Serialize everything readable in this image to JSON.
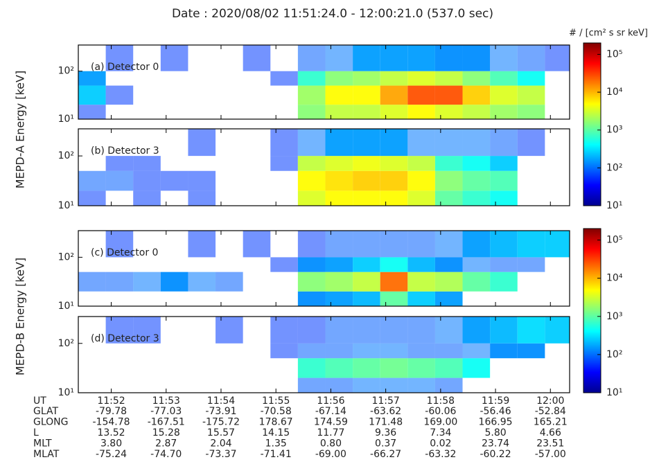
{
  "title": "Date : 2020/08/02 11:51:24.0 - 12:00:21.0 (537.0 sec)",
  "chart_data": [
    {
      "type": "heatmap",
      "label": "(a) Detector 0",
      "ylabel": "MEPD-A Energy [keV]",
      "xlim": [
        711.4,
        720.35
      ],
      "xticks": [
        712,
        713,
        714,
        715,
        716,
        717,
        718,
        719,
        720
      ],
      "ylim": [
        10,
        350
      ],
      "yticks": [
        {
          "value": 10,
          "label": "10¹"
        },
        {
          "value": 100,
          "label": "10²"
        }
      ],
      "log_y": true,
      "xbins": [
        711.4,
        711.9,
        712.4,
        712.9,
        713.4,
        713.9,
        714.4,
        714.9,
        715.4,
        715.9,
        716.4,
        716.9,
        717.4,
        717.9,
        718.4,
        718.9,
        719.4,
        719.9,
        720.35
      ],
      "ybins": [
        10,
        20,
        50,
        100,
        350
      ],
      "zlim": [
        10,
        200000
      ],
      "colorbar": {
        "label": "# / [cm² s sr keV]",
        "ticks": [
          {
            "value": 10,
            "label": "10¹"
          },
          {
            "value": 100,
            "label": "10²"
          },
          {
            "value": 1000,
            "label": "10³"
          },
          {
            "value": 10000,
            "label": "10⁴"
          },
          {
            "value": 100000,
            "label": "10⁵"
          }
        ]
      },
      "values": [
        [
          20,
          null,
          null,
          null,
          null,
          null,
          null,
          null,
          800,
          1500,
          1500,
          2000,
          3000,
          2000,
          1500,
          1000,
          800,
          null
        ],
        [
          100,
          20,
          null,
          null,
          null,
          null,
          null,
          null,
          1000,
          3000,
          3000,
          8000,
          20000,
          20000,
          5000,
          2000,
          1500,
          null
        ],
        [
          60,
          null,
          null,
          null,
          null,
          null,
          null,
          20,
          300,
          800,
          1000,
          1500,
          2000,
          1500,
          800,
          400,
          200,
          null
        ],
        [
          null,
          20,
          null,
          20,
          null,
          null,
          20,
          null,
          30,
          40,
          60,
          60,
          60,
          50,
          50,
          40,
          30,
          20
        ]
      ]
    },
    {
      "type": "heatmap",
      "label": "(b) Detector 3",
      "xlim": [
        711.4,
        720.35
      ],
      "xticks": [
        712,
        713,
        714,
        715,
        716,
        717,
        718,
        719,
        720
      ],
      "ylim": [
        10,
        350
      ],
      "yticks": [
        {
          "value": 10,
          "label": "10¹"
        },
        {
          "value": 100,
          "label": "10²"
        }
      ],
      "log_y": true,
      "xbins": [
        711.4,
        711.9,
        712.4,
        712.9,
        713.4,
        713.9,
        714.4,
        714.9,
        715.4,
        715.9,
        716.4,
        716.9,
        717.4,
        717.9,
        718.4,
        718.9,
        719.4,
        719.9,
        720.35
      ],
      "ybins": [
        10,
        20,
        50,
        100,
        350
      ],
      "zlim": [
        10,
        200000
      ],
      "values": [
        [
          20,
          null,
          20,
          null,
          20,
          null,
          null,
          null,
          2000,
          3000,
          3000,
          3000,
          2000,
          500,
          300,
          200,
          null,
          null
        ],
        [
          30,
          30,
          20,
          20,
          20,
          null,
          null,
          null,
          3000,
          4000,
          5000,
          5000,
          3000,
          800,
          500,
          400,
          null,
          null
        ],
        [
          null,
          20,
          20,
          null,
          null,
          null,
          null,
          20,
          1500,
          2000,
          2500,
          2000,
          1500,
          300,
          200,
          100,
          null,
          null
        ],
        [
          null,
          null,
          null,
          null,
          20,
          null,
          null,
          20,
          40,
          60,
          60,
          60,
          40,
          40,
          40,
          30,
          20,
          null
        ]
      ]
    },
    {
      "type": "heatmap",
      "label": "(c) Detector 0",
      "ylabel": "MEPD-B Energy [keV]",
      "xlim": [
        711.4,
        720.35
      ],
      "xticks": [
        712,
        713,
        714,
        715,
        716,
        717,
        718,
        719,
        720
      ],
      "ylim": [
        10,
        350
      ],
      "yticks": [
        {
          "value": 10,
          "label": "10¹"
        },
        {
          "value": 100,
          "label": "10²"
        }
      ],
      "log_y": true,
      "xbins": [
        711.4,
        711.9,
        712.4,
        712.9,
        713.4,
        713.9,
        714.4,
        714.9,
        715.4,
        715.9,
        716.4,
        716.9,
        717.4,
        717.9,
        718.4,
        718.9,
        719.4,
        719.9,
        720.35
      ],
      "ybins": [
        10,
        20,
        50,
        100,
        350
      ],
      "zlim": [
        10,
        200000
      ],
      "colorbar": {
        "ticks": [
          {
            "value": 10,
            "label": "10¹"
          },
          {
            "value": 100,
            "label": "10²"
          },
          {
            "value": 1000,
            "label": "10³"
          },
          {
            "value": 10000,
            "label": "10⁴"
          },
          {
            "value": 100000,
            "label": "10⁵"
          }
        ]
      },
      "values": [
        [
          null,
          null,
          null,
          null,
          null,
          null,
          null,
          null,
          50,
          60,
          80,
          500,
          100,
          60,
          null,
          null,
          null,
          null
        ],
        [
          30,
          30,
          40,
          50,
          40,
          30,
          null,
          null,
          800,
          1000,
          1500,
          15000,
          1500,
          1200,
          500,
          300,
          null,
          null
        ],
        [
          null,
          null,
          null,
          null,
          null,
          null,
          null,
          20,
          50,
          60,
          100,
          200,
          80,
          50,
          40,
          30,
          30,
          null
        ],
        [
          null,
          20,
          null,
          null,
          20,
          null,
          20,
          null,
          20,
          30,
          30,
          30,
          30,
          40,
          60,
          80,
          100,
          100
        ]
      ]
    },
    {
      "type": "heatmap",
      "label": "(d) Detector 3",
      "xlim": [
        711.4,
        720.35
      ],
      "xticks": [
        {
          "value": 712,
          "label": "11:52"
        },
        {
          "value": 713,
          "label": "11:53"
        },
        {
          "value": 714,
          "label": "11:54"
        },
        {
          "value": 715,
          "label": "11:55"
        },
        {
          "value": 716,
          "label": "11:56"
        },
        {
          "value": 717,
          "label": "11:57"
        },
        {
          "value": 718,
          "label": "11:58"
        },
        {
          "value": 719,
          "label": "11:59"
        },
        {
          "value": 720,
          "label": "12:00"
        }
      ],
      "xlabel": "UT",
      "ylim": [
        10,
        350
      ],
      "yticks": [
        {
          "value": 10,
          "label": "10¹"
        },
        {
          "value": 100,
          "label": "10²"
        }
      ],
      "log_y": true,
      "xbins": [
        711.4,
        711.9,
        712.4,
        712.9,
        713.4,
        713.9,
        714.4,
        714.9,
        715.4,
        715.9,
        716.4,
        716.9,
        717.4,
        717.9,
        718.4,
        718.9,
        719.4,
        719.9,
        720.35
      ],
      "ybins": [
        10,
        20,
        50,
        100,
        350
      ],
      "zlim": [
        10,
        200000
      ],
      "values": [
        [
          null,
          null,
          null,
          null,
          null,
          null,
          null,
          null,
          30,
          30,
          40,
          40,
          40,
          30,
          null,
          null,
          null,
          null
        ],
        [
          null,
          null,
          null,
          null,
          null,
          null,
          null,
          null,
          300,
          400,
          500,
          600,
          500,
          400,
          200,
          null,
          null,
          null
        ],
        [
          null,
          null,
          null,
          null,
          null,
          null,
          null,
          20,
          30,
          30,
          40,
          40,
          30,
          30,
          40,
          50,
          50,
          null
        ],
        [
          null,
          20,
          20,
          null,
          null,
          20,
          null,
          20,
          20,
          30,
          30,
          30,
          30,
          40,
          60,
          80,
          120,
          100
        ]
      ]
    }
  ],
  "ephemeris": [
    {
      "name": "GLAT",
      "values": [
        "-79.78",
        "-77.03",
        "-73.91",
        "-70.58",
        "-67.14",
        "-63.62",
        "-60.06",
        "-56.46",
        "-52.84"
      ]
    },
    {
      "name": "GLONG",
      "values": [
        "-154.78",
        "-167.51",
        "-175.72",
        "178.67",
        "174.59",
        "171.48",
        "169.00",
        "166.95",
        "165.21"
      ]
    },
    {
      "name": "L",
      "values": [
        "13.52",
        "15.28",
        "15.57",
        "14.15",
        "11.77",
        "9.36",
        "7.34",
        "5.80",
        "4.66"
      ]
    },
    {
      "name": "MLT",
      "values": [
        "3.80",
        "2.87",
        "2.04",
        "1.35",
        "0.80",
        "0.37",
        "0.02",
        "23.74",
        "23.51"
      ]
    },
    {
      "name": "MLAT",
      "values": [
        "-75.24",
        "-74.70",
        "-73.37",
        "-71.41",
        "-69.00",
        "-66.27",
        "-63.32",
        "-60.22",
        "-57.00"
      ]
    }
  ]
}
